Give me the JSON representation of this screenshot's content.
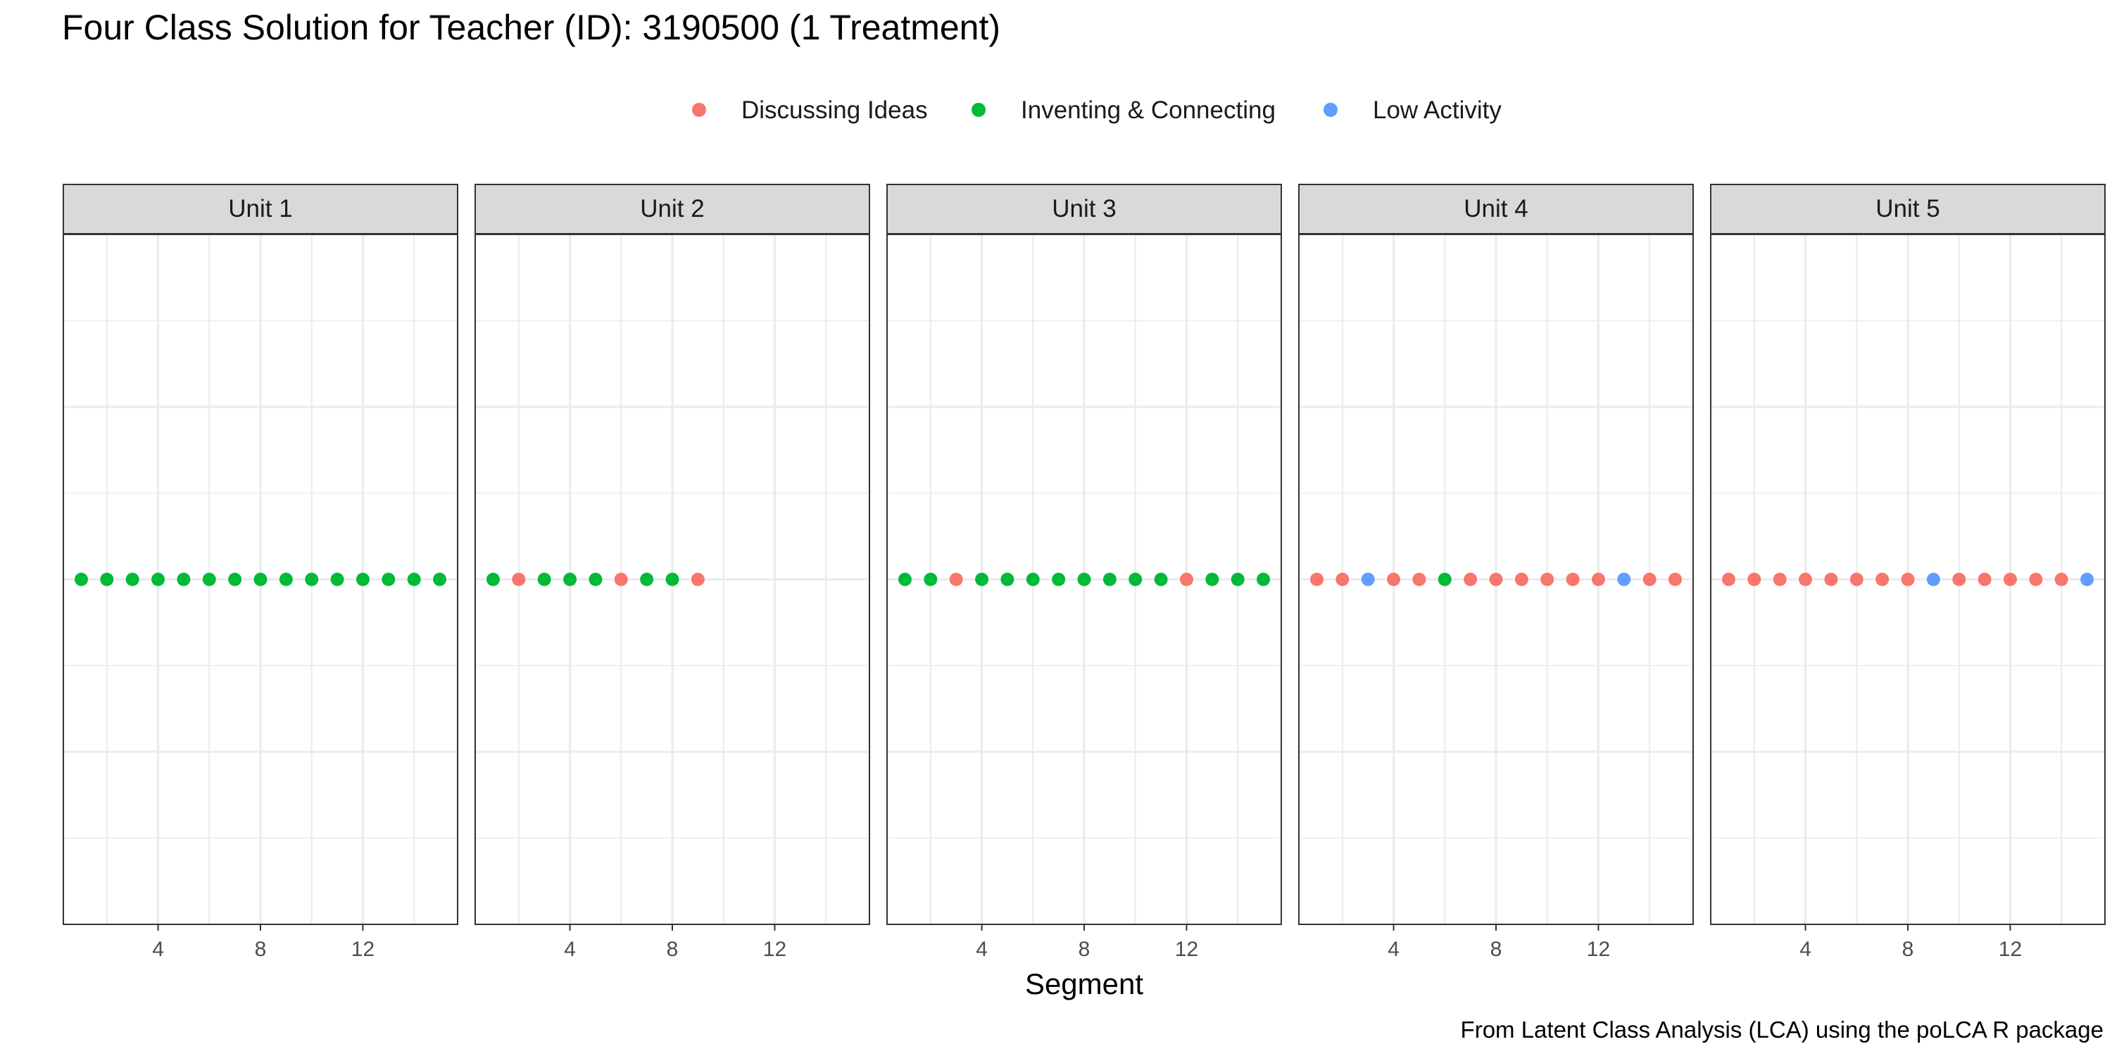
{
  "chart_data": {
    "type": "scatter",
    "title": "Four Class Solution for Teacher (ID): 3190500 (1 Treatment)",
    "xlabel": "Segment",
    "ylabel": "",
    "caption": "From Latent Class Analysis (LCA) using the poLCA R package",
    "legend": {
      "placement": "top",
      "entries": [
        {
          "name": "Discussing Ideas",
          "color": "#F8766D"
        },
        {
          "name": "Inventing & Connecting",
          "color": "#00BA38"
        },
        {
          "name": "Low Activity",
          "color": "#619CFF"
        }
      ]
    },
    "xlim": [
      0.3,
      15.7
    ],
    "x_ticks": [
      4,
      8,
      12
    ],
    "y_value": 1,
    "grid": true,
    "facets": [
      {
        "label": "Unit 1",
        "x": [
          1,
          2,
          3,
          4,
          5,
          6,
          7,
          8,
          9,
          10,
          11,
          12,
          13,
          14,
          15
        ],
        "class": [
          "Inventing & Connecting",
          "Inventing & Connecting",
          "Inventing & Connecting",
          "Inventing & Connecting",
          "Inventing & Connecting",
          "Inventing & Connecting",
          "Inventing & Connecting",
          "Inventing & Connecting",
          "Inventing & Connecting",
          "Inventing & Connecting",
          "Inventing & Connecting",
          "Inventing & Connecting",
          "Inventing & Connecting",
          "Inventing & Connecting",
          "Inventing & Connecting"
        ]
      },
      {
        "label": "Unit 2",
        "x": [
          1,
          2,
          3,
          4,
          5,
          6,
          7,
          8,
          9
        ],
        "class": [
          "Inventing & Connecting",
          "Discussing Ideas",
          "Inventing & Connecting",
          "Inventing & Connecting",
          "Inventing & Connecting",
          "Discussing Ideas",
          "Inventing & Connecting",
          "Inventing & Connecting",
          "Discussing Ideas"
        ]
      },
      {
        "label": "Unit 3",
        "x": [
          1,
          2,
          3,
          4,
          5,
          6,
          7,
          8,
          9,
          10,
          11,
          12,
          13,
          14,
          15
        ],
        "class": [
          "Inventing & Connecting",
          "Inventing & Connecting",
          "Discussing Ideas",
          "Inventing & Connecting",
          "Inventing & Connecting",
          "Inventing & Connecting",
          "Inventing & Connecting",
          "Inventing & Connecting",
          "Inventing & Connecting",
          "Inventing & Connecting",
          "Inventing & Connecting",
          "Discussing Ideas",
          "Inventing & Connecting",
          "Inventing & Connecting",
          "Inventing & Connecting"
        ]
      },
      {
        "label": "Unit 4",
        "x": [
          1,
          2,
          3,
          4,
          5,
          6,
          7,
          8,
          9,
          10,
          11,
          12,
          13,
          14,
          15
        ],
        "class": [
          "Discussing Ideas",
          "Discussing Ideas",
          "Low Activity",
          "Discussing Ideas",
          "Discussing Ideas",
          "Inventing & Connecting",
          "Discussing Ideas",
          "Discussing Ideas",
          "Discussing Ideas",
          "Discussing Ideas",
          "Discussing Ideas",
          "Discussing Ideas",
          "Low Activity",
          "Discussing Ideas",
          "Discussing Ideas"
        ]
      },
      {
        "label": "Unit 5",
        "x": [
          1,
          2,
          3,
          4,
          5,
          6,
          7,
          8,
          9,
          10,
          11,
          12,
          13,
          14,
          15
        ],
        "class": [
          "Discussing Ideas",
          "Discussing Ideas",
          "Discussing Ideas",
          "Discussing Ideas",
          "Discussing Ideas",
          "Discussing Ideas",
          "Discussing Ideas",
          "Discussing Ideas",
          "Low Activity",
          "Discussing Ideas",
          "Discussing Ideas",
          "Discussing Ideas",
          "Discussing Ideas",
          "Discussing Ideas",
          "Low Activity"
        ]
      }
    ]
  }
}
